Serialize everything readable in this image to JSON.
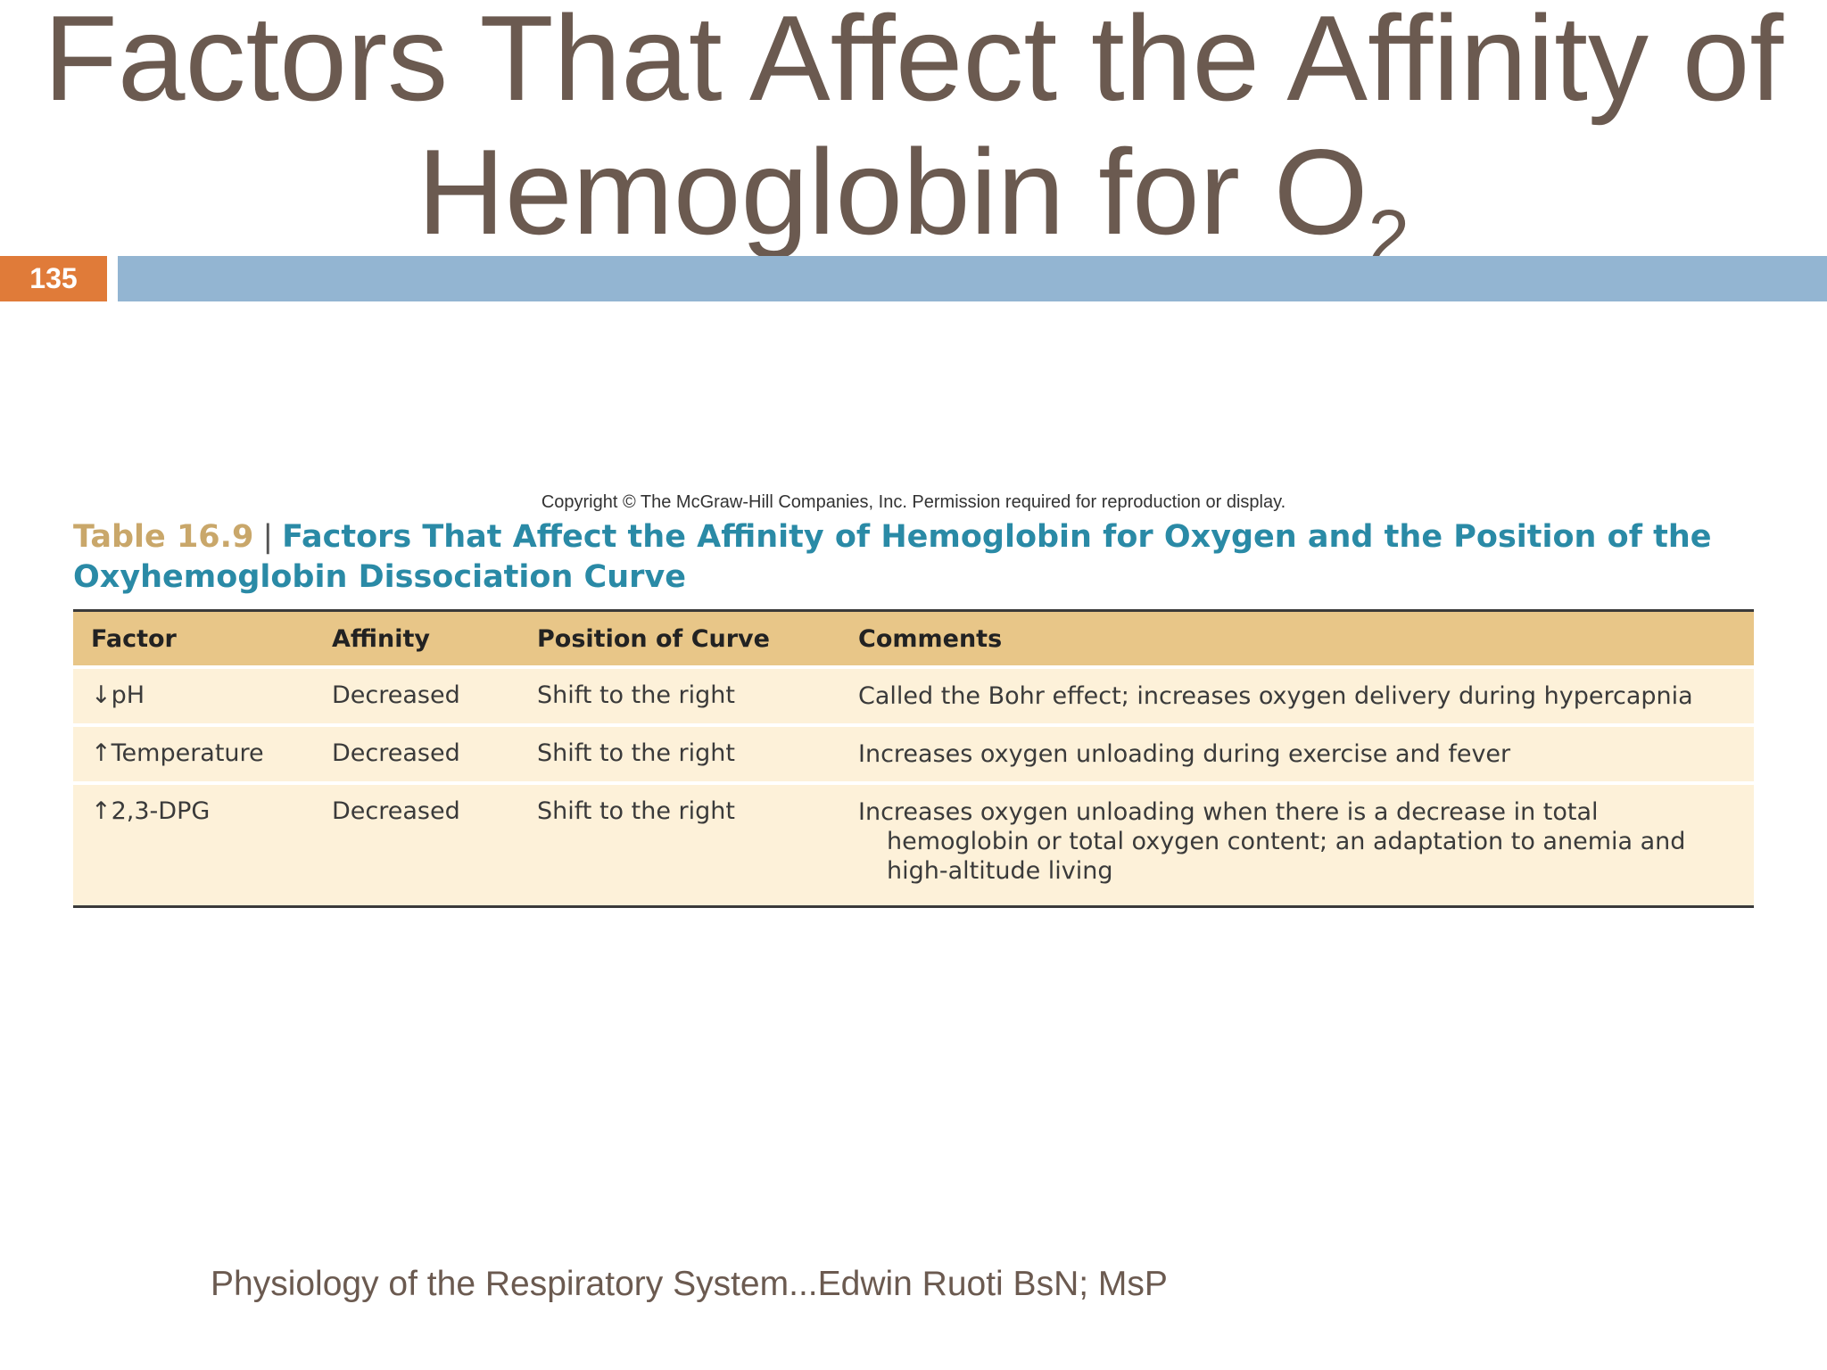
{
  "slide": {
    "title_line1": "Factors That Affect the Affinity of",
    "title_line2": "Hemoglobin for O",
    "title_subscript": "2",
    "number": "135",
    "footer": "Physiology of the Respiratory System...Edwin Ruoti BsN; MsP"
  },
  "figure": {
    "copyright": "Copyright © The McGraw-Hill Companies, Inc. Permission required for reproduction or display.",
    "table_number": "Table 16.9",
    "separator": "|",
    "table_title": "Factors That Affect the Affinity of Hemoglobin for Oxygen and the Position of the Oxyhemoglobin Dissociation Curve",
    "headers": {
      "factor": "Factor",
      "affinity": "Affinity",
      "position": "Position of Curve",
      "comments": "Comments"
    },
    "rows": [
      {
        "factor": "↓pH",
        "affinity": "Decreased",
        "position": "Shift to the right",
        "comments": "Called the Bohr effect; increases oxygen delivery during hypercapnia"
      },
      {
        "factor": "↑Temperature",
        "affinity": "Decreased",
        "position": "Shift to the right",
        "comments": "Increases oxygen unloading during exercise and fever"
      },
      {
        "factor": "↑2,3-DPG",
        "affinity": "Decreased",
        "position": "Shift to the right",
        "comments": "Increases oxygen unloading when there is a decrease in total hemoglobin or total oxygen content; an adaptation to anemia and high-altitude living"
      }
    ]
  },
  "colors": {
    "title": "#6b5a50",
    "slide_number_bg": "#e07b39",
    "header_bar": "#93b5d2",
    "caption_blue": "#2a8aa6",
    "caption_tan": "#c9a76a",
    "table_header_bg": "#e8c688",
    "table_row_bg": "#fdf1d9"
  }
}
